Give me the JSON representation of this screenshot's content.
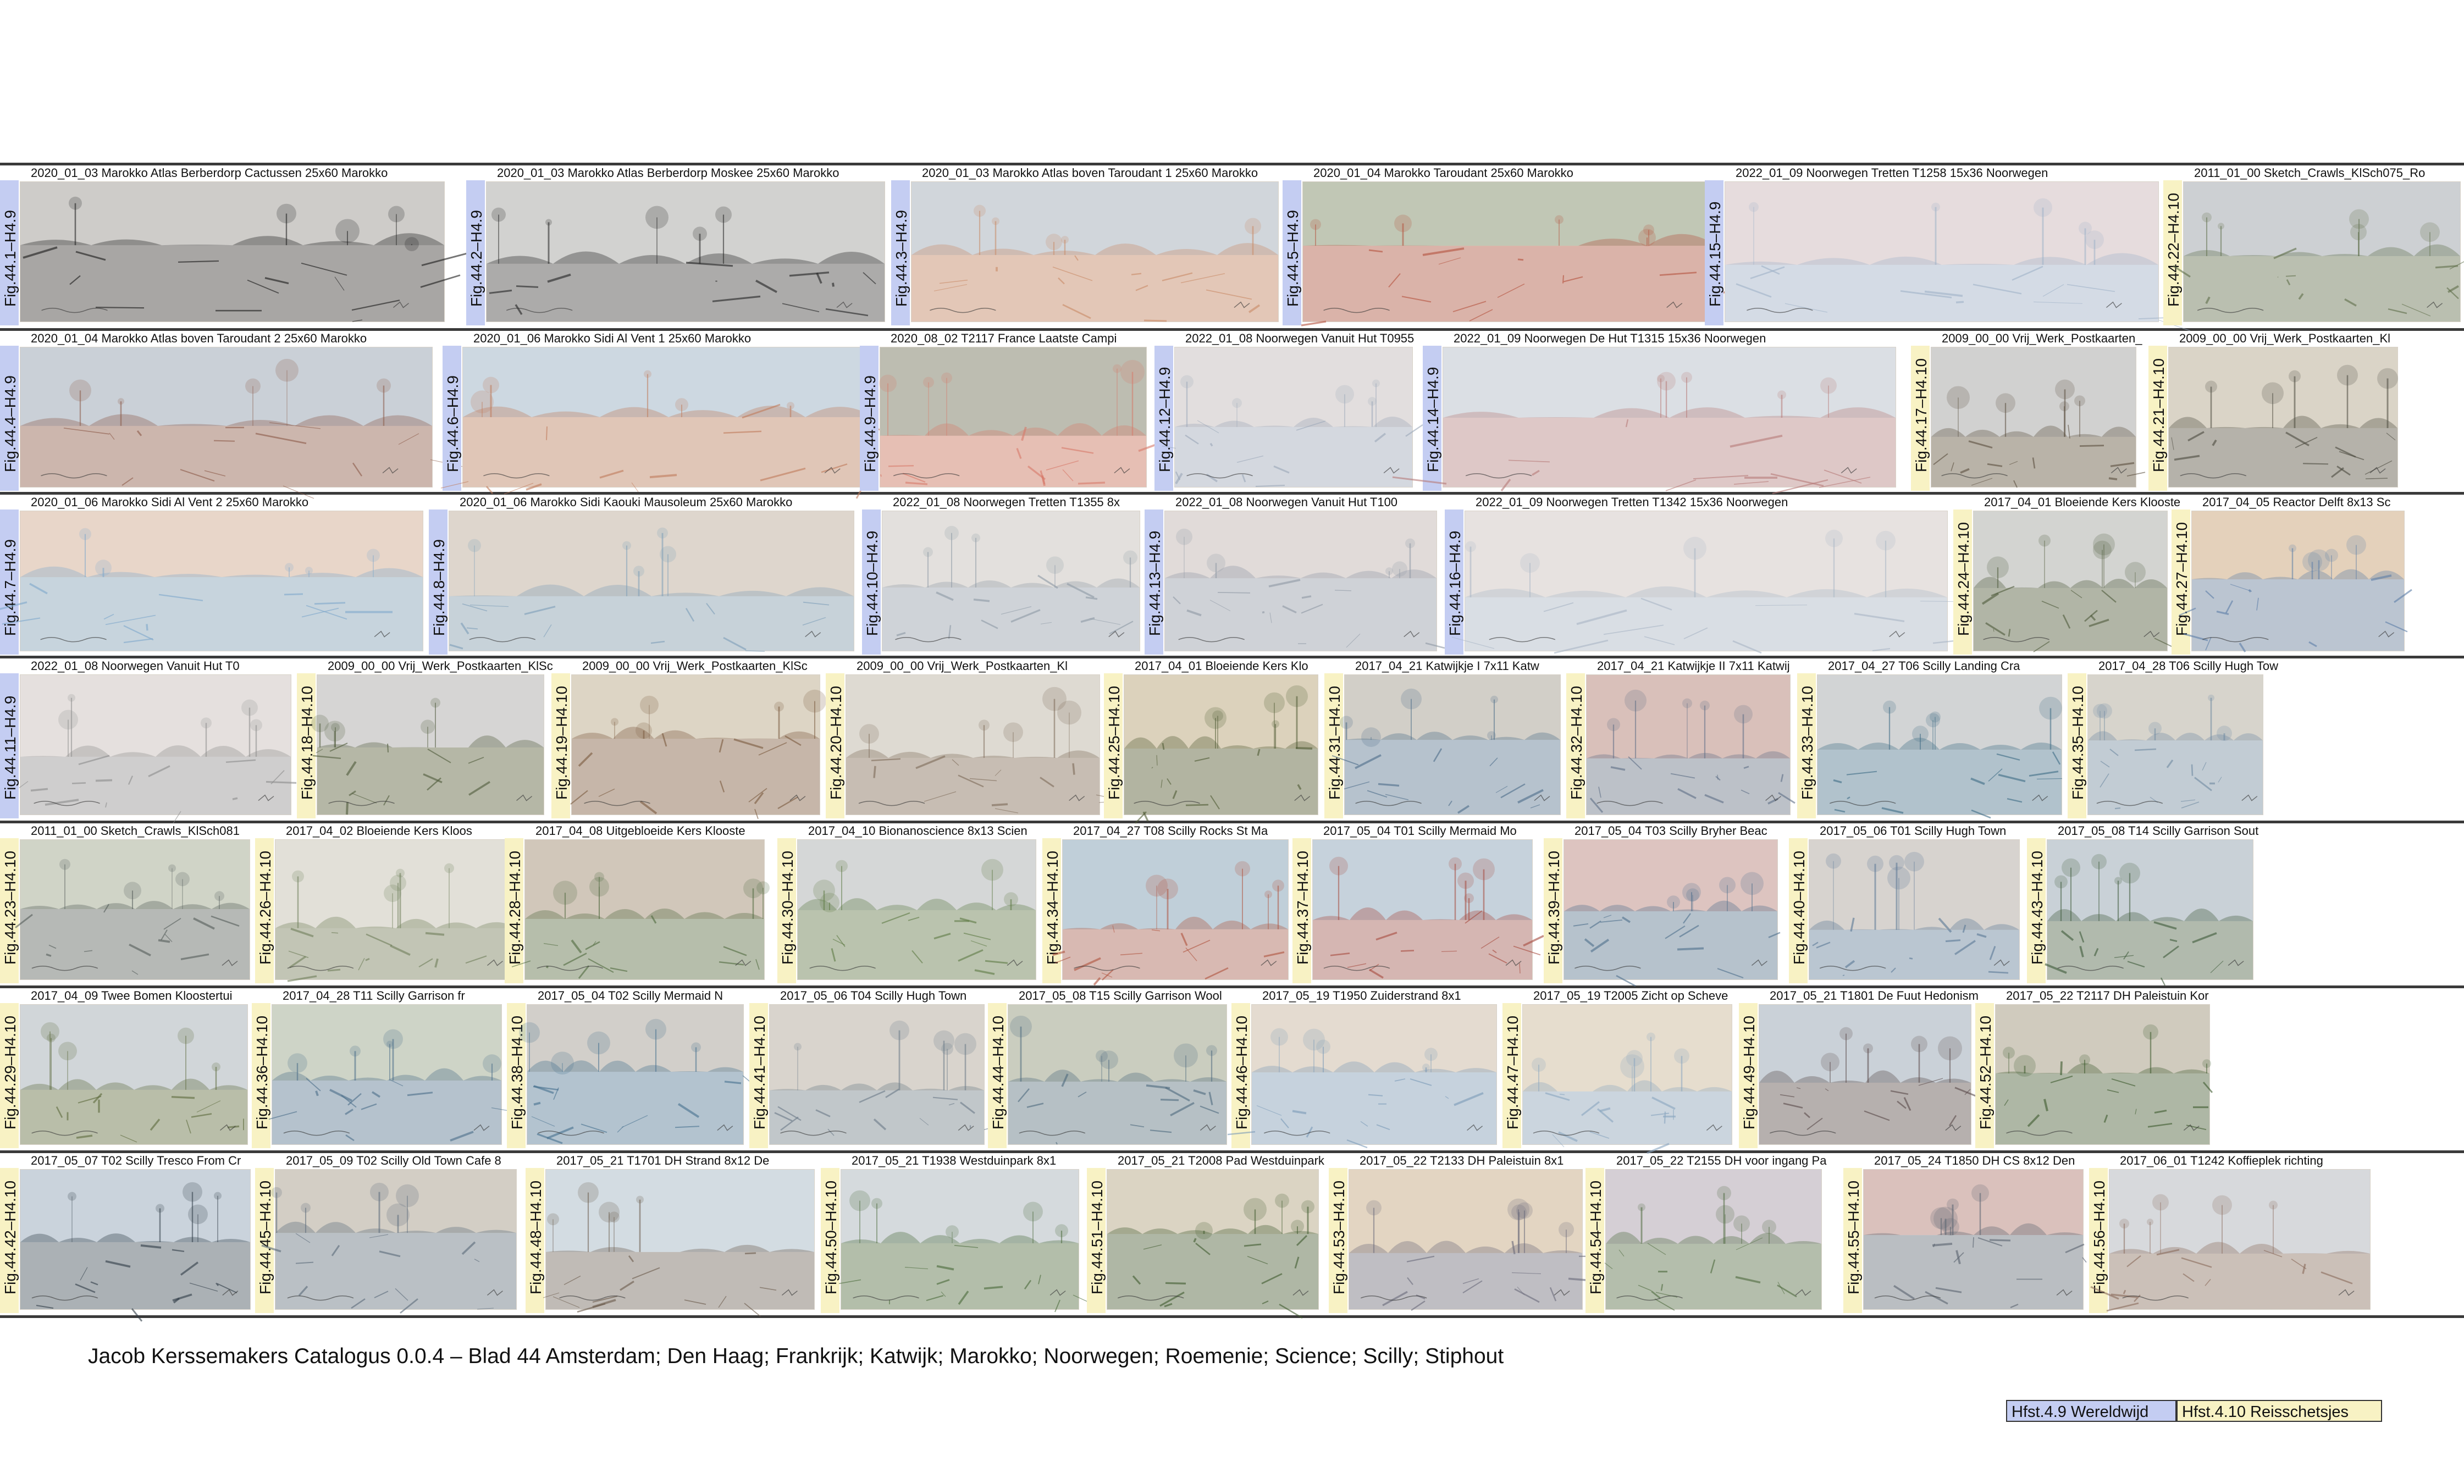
{
  "footer": {
    "title": "Jacob Kerssemakers Catalogus 0.0.4 – Blad 44 Amsterdam; Den Haag; Frankrijk; Katwijk; Marokko; Noorwegen; Roemenie; Science; Scilly; Stiphout",
    "link_49": "Hfst.4.9 Wereldwijd",
    "link_410": "Hfst.4.10 Reisschetsjes"
  },
  "colors": {
    "chapter_4_9": "#c4cdf2",
    "chapter_4_10": "#f8f2c4",
    "row_divider": "#3a3a3a"
  },
  "rows": [
    {
      "tiles": [
        {
          "caption": "2020_01_03 Marokko Atlas Berberdorp Cactussen 25x60 Marokko",
          "fig": "Fig.44.1–H4.9",
          "chapter": "4.9",
          "palette": [
            "#f4f1ee",
            "#1a1a1a",
            "#6b6b6b"
          ]
        },
        {
          "caption": "2020_01_03 Marokko Atlas Berberdorp Moskee 25x60 Marokko",
          "fig": "Fig.44.2–H4.9",
          "chapter": "4.9",
          "palette": [
            "#f6f5f3",
            "#222222",
            "#777777"
          ]
        },
        {
          "caption": "2020_01_03 Marokko Atlas boven Taroudant 1 25x60 Marokko",
          "fig": "Fig.44.3–H4.9",
          "chapter": "4.9",
          "palette": [
            "#f1e9e2",
            "#c98a66",
            "#7da6c9"
          ]
        },
        {
          "caption": "2020_01_04 Marokko Taroudant 25x60 Marokko",
          "fig": "Fig.44.5–H4.9",
          "chapter": "4.9",
          "palette": [
            "#efe9e4",
            "#b5513d",
            "#4d6f3e"
          ]
        },
        {
          "caption": "2022_01_09 Noorwegen Tretten T1258 15x36 Noorwegen",
          "fig": "Fig.44.15–H4.9",
          "chapter": "4.9",
          "palette": [
            "#f1f2f4",
            "#9fb3c8",
            "#c9a7a1"
          ]
        },
        {
          "caption": "2011_01_00 Sketch_Crawls_KlSch075_Ro",
          "fig": "Fig.44.22–H4.10",
          "chapter": "4.10",
          "palette": [
            "#eceae6",
            "#5f6f4a",
            "#7f8da3"
          ]
        }
      ]
    },
    {
      "tiles": [
        {
          "caption": "2020_01_04 Marokko Atlas boven Taroudant 2 25x60 Marokko",
          "fig": "Fig.44.4–H4.9",
          "chapter": "4.9",
          "palette": [
            "#eee8e4",
            "#8c5a48",
            "#6f93b8"
          ]
        },
        {
          "caption": "2020_01_06 Marokko Sidi Al Vent 1 25x60 Marokko",
          "fig": "Fig.44.6–H4.9",
          "chapter": "4.9",
          "palette": [
            "#f2eeea",
            "#c07b5a",
            "#6ea0c8"
          ]
        },
        {
          "caption": "2020_08_02 T2117 France Laatste Campi",
          "fig": "Fig.44.9–H4.9",
          "chapter": "4.9",
          "palette": [
            "#efe4dc",
            "#d87a6a",
            "#3d5a45"
          ]
        },
        {
          "caption": "2022_01_08 Noorwegen Vanuit Hut T0955",
          "fig": "Fig.44.12–H4.9",
          "chapter": "4.9",
          "palette": [
            "#f3f3f5",
            "#9aa7b8",
            "#b7aaa0"
          ]
        },
        {
          "caption": "2022_01_09 Noorwegen De Hut T1315 15x36 Noorwegen",
          "fig": "Fig.44.14–H4.9",
          "chapter": "4.9",
          "palette": [
            "#f3f1f2",
            "#b77a78",
            "#9fb1c3"
          ]
        },
        {
          "caption": "2009_00_00 Vrij_Werk_Postkaarten_",
          "fig": "Fig.44.17–H4.10",
          "chapter": "4.10",
          "palette": [
            "#ece8e1",
            "#5b4f3f",
            "#8c97a6"
          ]
        },
        {
          "caption": "2009_00_00 Vrij_Werk_Postkaarten_Kl",
          "fig": "Fig.44.21–H4.10",
          "chapter": "4.10",
          "palette": [
            "#eeeae3",
            "#4b4a3e",
            "#a89b7e"
          ]
        }
      ]
    },
    {
      "tiles": [
        {
          "caption": "2020_01_06 Marokko Sidi Al Vent 2 25x60 Marokko",
          "fig": "Fig.44.7–H4.9",
          "chapter": "4.9",
          "palette": [
            "#efebe6",
            "#7fa8cc",
            "#d6a27c"
          ]
        },
        {
          "caption": "2020_01_06 Marokko Sidi Kaouki Mausoleum 25x60 Marokko",
          "fig": "Fig.44.8–H4.9",
          "chapter": "4.9",
          "palette": [
            "#eeeeec",
            "#7d9eb8",
            "#b89a7c"
          ]
        },
        {
          "caption": "2022_01_08 Noorwegen Tretten T1355 8x",
          "fig": "Fig.44.10–H4.9",
          "chapter": "4.9",
          "palette": [
            "#f2f2f3",
            "#8e9aa6",
            "#bdb2a6"
          ]
        },
        {
          "caption": "2022_01_08 Noorwegen Vanuit Hut T100",
          "fig": "Fig.44.13–H4.9",
          "chapter": "4.9",
          "palette": [
            "#f1f1f1",
            "#8f98a5",
            "#b8a39a"
          ]
        },
        {
          "caption": "2022_01_09 Noorwegen Tretten T1342 15x36 Noorwegen",
          "fig": "Fig.44.16–H4.9",
          "chapter": "4.9",
          "palette": [
            "#f3f3f4",
            "#a9b6c6",
            "#c8b7ae"
          ]
        },
        {
          "caption": "2017_04_01 Bloeiende Kers Klooste",
          "fig": "Fig.44.24–H4.10",
          "chapter": "4.10",
          "palette": [
            "#e7e6e0",
            "#4e5a3a",
            "#a0a6ab"
          ]
        },
        {
          "caption": "2017_04_05 Reactor Delft 8x13 Sc",
          "fig": "Fig.44.27–H4.10",
          "chapter": "4.10",
          "palette": [
            "#efece6",
            "#5d7ea8",
            "#c88c4a"
          ]
        }
      ]
    },
    {
      "tiles": [
        {
          "caption": "2022_01_08 Noorwegen Vanuit Hut T0",
          "fig": "Fig.44.11–H4.9",
          "chapter": "4.9",
          "palette": [
            "#f3f2f2",
            "#8c8c8c",
            "#c2b4ac"
          ]
        },
        {
          "caption": "2009_00_00 Vrij_Werk_Postkaarten_KlSc",
          "fig": "Fig.44.18–H4.10",
          "chapter": "4.10",
          "palette": [
            "#ece8e1",
            "#4f5b3a",
            "#9da7b3"
          ]
        },
        {
          "caption": "2009_00_00 Vrij_Werk_Postkaarten_KlSc",
          "fig": "Fig.44.19–H4.10",
          "chapter": "4.10",
          "palette": [
            "#eee9e2",
            "#7a5a3e",
            "#b4a27a"
          ]
        },
        {
          "caption": "2009_00_00 Vrij_Werk_Postkaarten_Kl",
          "fig": "Fig.44.20–H4.10",
          "chapter": "4.10",
          "palette": [
            "#eeeae4",
            "#7d6a58",
            "#b6b0a6"
          ]
        },
        {
          "caption": "2017_04_01 Bloeiende Kers Klo",
          "fig": "Fig.44.25–H4.10",
          "chapter": "4.10",
          "palette": [
            "#e6e4dc",
            "#4f5b34",
            "#c2a56a"
          ]
        },
        {
          "caption": "2017_04_21 Katwijkje I 7x11 Katw",
          "fig": "Fig.44.31–H4.10",
          "chapter": "4.10",
          "palette": [
            "#eef0f1",
            "#4d6d8a",
            "#8c7a5f"
          ]
        },
        {
          "caption": "2017_04_21 Katwijkje II 7x11 Katwij",
          "fig": "Fig.44.32–H4.10",
          "chapter": "4.10",
          "palette": [
            "#eeeeec",
            "#5e6e86",
            "#a64a3a"
          ]
        },
        {
          "caption": "2017_04_27 T06 Scilly Landing Cra",
          "fig": "Fig.44.33–H4.10",
          "chapter": "4.10",
          "palette": [
            "#eef0f1",
            "#3e6c86",
            "#8c8c8c"
          ]
        },
        {
          "caption": "2017_04_28 T06 Scilly Hugh Tow",
          "fig": "Fig.44.35–H4.10",
          "chapter": "4.10",
          "palette": [
            "#eff0ef",
            "#6f8aa2",
            "#9a8d73"
          ]
        }
      ]
    },
    {
      "tiles": [
        {
          "caption": "2011_01_00 Sketch_Crawls_KlSch081",
          "fig": "Fig.44.23–H4.10",
          "chapter": "4.10",
          "palette": [
            "#ecebe8",
            "#545c5a",
            "#8a9a72"
          ]
        },
        {
          "caption": "2017_04_02 Bloeiende Kers Kloos",
          "fig": "Fig.44.26–H4.10",
          "chapter": "4.10",
          "palette": [
            "#eeece6",
            "#6f7f5a",
            "#c7c1b4"
          ]
        },
        {
          "caption": "2017_04_08 Uitgebloeide Kers Klooste",
          "fig": "Fig.44.28–H4.10",
          "chapter": "4.10",
          "palette": [
            "#edebe5",
            "#4f6a3e",
            "#8a6a4a"
          ]
        },
        {
          "caption": "2017_04_10 Bionanoscience 8x13 Scien",
          "fig": "Fig.44.30–H4.10",
          "chapter": "4.10",
          "palette": [
            "#eceae6",
            "#5e7a44",
            "#9aa4b0"
          ]
        },
        {
          "caption": "2017_04_27 T08 Scilly Rocks St Ma",
          "fig": "Fig.44.34–H4.10",
          "chapter": "4.10",
          "palette": [
            "#eef0f1",
            "#b0523d",
            "#4d7a9a"
          ]
        },
        {
          "caption": "2017_05_04 T01 Scilly Mermaid Mo",
          "fig": "Fig.44.37–H4.10",
          "chapter": "4.10",
          "palette": [
            "#eff0f0",
            "#a74a3e",
            "#5d86a8"
          ]
        },
        {
          "caption": "2017_05_04 T03 Scilly Bryher Beac",
          "fig": "Fig.44.39–H4.10",
          "chapter": "4.10",
          "palette": [
            "#eeeeee",
            "#4e6f8c",
            "#b45b4a"
          ]
        },
        {
          "caption": "2017_05_06 T01 Scilly Hugh Town",
          "fig": "Fig.44.40–H4.10",
          "chapter": "4.10",
          "palette": [
            "#eff0f1",
            "#5a7896",
            "#9a8a78"
          ]
        },
        {
          "caption": "2017_05_08 T14 Scilly Garrison Sout",
          "fig": "Fig.44.43–H4.10",
          "chapter": "4.10",
          "palette": [
            "#eeeeeb",
            "#3e5a3a",
            "#6b88a4"
          ]
        }
      ]
    },
    {
      "tiles": [
        {
          "caption": "2017_04_09 Twee Bomen Kloostertui",
          "fig": "Fig.44.29–H4.10",
          "chapter": "4.10",
          "palette": [
            "#ecebe4",
            "#5c6a3c",
            "#8da3bd"
          ]
        },
        {
          "caption": "2017_04_28 T11 Scilly Garrison fr",
          "fig": "Fig.44.36–H4.10",
          "chapter": "4.10",
          "palette": [
            "#eff0f1",
            "#4b6e8a",
            "#7a8c5a"
          ]
        },
        {
          "caption": "2017_05_04 T02 Scilly Mermaid N",
          "fig": "Fig.44.38–H4.10",
          "chapter": "4.10",
          "palette": [
            "#eef0f1",
            "#46708f",
            "#8c7966"
          ]
        },
        {
          "caption": "2017_05_06 T04 Scilly Hugh Town",
          "fig": "Fig.44.41–H4.10",
          "chapter": "4.10",
          "palette": [
            "#f0f0ef",
            "#6b7a88",
            "#9d8b78"
          ]
        },
        {
          "caption": "2017_05_08 T15 Scilly Garrison Wool",
          "fig": "Fig.44.44–H4.10",
          "chapter": "4.10",
          "palette": [
            "#eeeeec",
            "#4e6a7e",
            "#6f7a4c"
          ]
        },
        {
          "caption": "2017_05_19 T1950 Zuiderstrand 8x1",
          "fig": "Fig.44.46–H4.10",
          "chapter": "4.10",
          "palette": [
            "#eff0f1",
            "#7a9ab8",
            "#c9a77a"
          ]
        },
        {
          "caption": "2017_05_19 T2005 Zicht op Scheve",
          "fig": "Fig.44.47–H4.10",
          "chapter": "4.10",
          "palette": [
            "#efefef",
            "#8aa6c0",
            "#d0b07a"
          ]
        },
        {
          "caption": "2017_05_21 T1801 De Fuut Hedonism",
          "fig": "Fig.44.49–H4.10",
          "chapter": "4.10",
          "palette": [
            "#e9e6e3",
            "#5a4a4a",
            "#7a9abc"
          ]
        },
        {
          "caption": "2017_05_22 T2117 DH Paleistuin Kor",
          "fig": "Fig.44.52–H4.10",
          "chapter": "4.10",
          "palette": [
            "#ebeae5",
            "#3d5a2e",
            "#8c7a5a"
          ]
        }
      ]
    },
    {
      "tiles": [
        {
          "caption": "2017_05_07 T02 Scilly Tresco From Cr",
          "fig": "Fig.44.42–H4.10",
          "chapter": "4.10",
          "palette": [
            "#eef0f1",
            "#2f3b46",
            "#6e8aa6"
          ]
        },
        {
          "caption": "2017_05_09 T02 Scilly Old Town Cafe 8",
          "fig": "Fig.44.45–H4.10",
          "chapter": "4.10",
          "palette": [
            "#efefed",
            "#5a6a7a",
            "#8c7a5e"
          ]
        },
        {
          "caption": "2017_05_21 T1701 DH Strand 8x12 De",
          "fig": "Fig.44.48–H4.10",
          "chapter": "4.10",
          "palette": [
            "#eef0f0",
            "#6a5a4a",
            "#8fa8c0"
          ]
        },
        {
          "caption": "2017_05_21 T1938 Westduinpark 8x1",
          "fig": "Fig.44.50–H4.10",
          "chapter": "4.10",
          "palette": [
            "#ecebe6",
            "#4a6a3a",
            "#9ab0c6"
          ]
        },
        {
          "caption": "2017_05_21 T2008 Pad Westduinpark",
          "fig": "Fig.44.51–H4.10",
          "chapter": "4.10",
          "palette": [
            "#ebeae5",
            "#3f5a2e",
            "#b59a6a"
          ]
        },
        {
          "caption": "2017_05_22 T2133 DH Paleistuin 8x1",
          "fig": "Fig.44.53–H4.10",
          "chapter": "4.10",
          "palette": [
            "#edecea",
            "#6a6a7a",
            "#c89a5a"
          ]
        },
        {
          "caption": "2017_05_22 T2155 DH voor ingang Pa",
          "fig": "Fig.44.54–H4.10",
          "chapter": "4.10",
          "palette": [
            "#ecebe6",
            "#4e6a3e",
            "#9a8aa8"
          ]
        },
        {
          "caption": "2017_05_24 T1850 DH CS 8x12 Den",
          "fig": "Fig.44.55–H4.10",
          "chapter": "4.10",
          "palette": [
            "#efefee",
            "#5a6470",
            "#a44a3e"
          ]
        },
        {
          "caption": "2017_06_01 T1242 Koffieplek richting",
          "fig": "Fig.44.56–H4.10",
          "chapter": "4.10",
          "palette": [
            "#efeeec",
            "#8a6a5a",
            "#9aa6b4"
          ]
        }
      ]
    }
  ]
}
